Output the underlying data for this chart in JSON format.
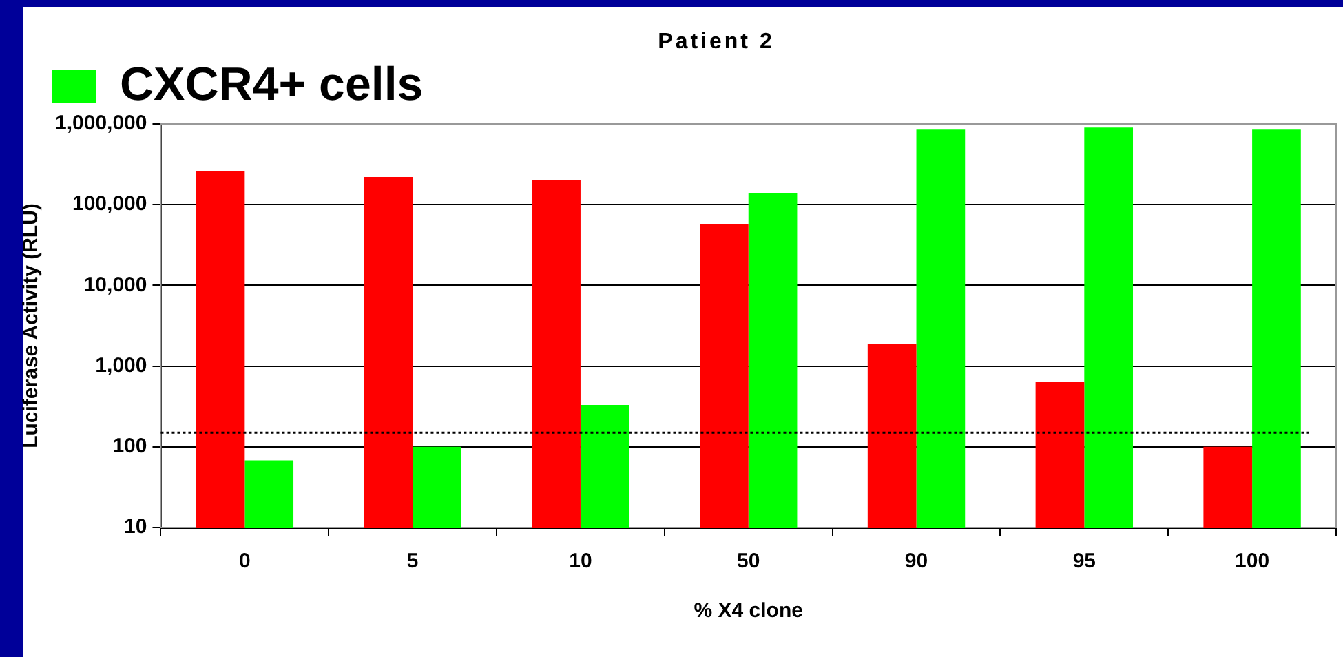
{
  "chart_data": {
    "type": "bar",
    "title": "Patient 2",
    "xlabel": "% X4 clone",
    "ylabel": "Luciferase Activity (RLU)",
    "categories": [
      "0",
      "5",
      "10",
      "50",
      "90",
      "95",
      "100"
    ],
    "series": [
      {
        "color": "#ff0000",
        "values": [
          260000,
          220000,
          200000,
          58000,
          1900,
          630,
          100
        ]
      },
      {
        "name": "CXCR4+ cells",
        "color": "#00ff00",
        "values": [
          68,
          100,
          330,
          140000,
          850000,
          900000,
          850000
        ]
      }
    ],
    "log": "y",
    "ylim": [
      10,
      1000000
    ],
    "yticks": [
      10,
      100,
      {
        "value": 1000,
        "label": "1,000"
      },
      {
        "value": 10000,
        "label": "10,000"
      },
      {
        "value": 100000,
        "label": "100,000"
      },
      {
        "value": 1000000,
        "label": "1,000,000"
      }
    ],
    "grid": "y",
    "legend": "top left",
    "ref_lines": [
      {
        "axis": "y",
        "value": 150,
        "line_style": "dotted",
        "color": "#000000"
      }
    ]
  }
}
